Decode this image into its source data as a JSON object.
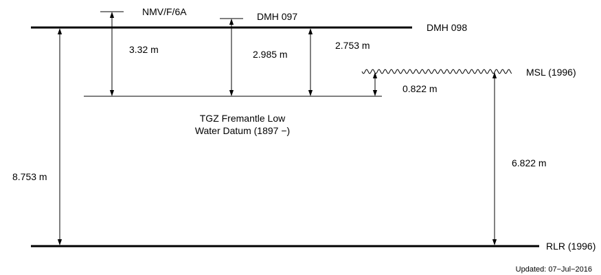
{
  "levels": {
    "dmh098": "DMH 098",
    "dmh097": "DMH 097",
    "nmv": "NMV/F/6A",
    "tgz_line1": "TGZ Fremantle Low",
    "tgz_line2": "Water Datum (1897 −)",
    "msl": "MSL (1996)",
    "rlr": "RLR (1996)"
  },
  "measurements": {
    "nmv_to_tgz": "3.32 m",
    "dmh097_to_tgz": "2.985 m",
    "dmh098_to_tgz": "2.753 m",
    "msl_to_tgz": "0.822 m",
    "dmh098_to_rlr": "8.753 m",
    "msl_to_rlr": "6.822 m"
  },
  "footer": {
    "updated": "Updated: 07−Jul−2016"
  }
}
